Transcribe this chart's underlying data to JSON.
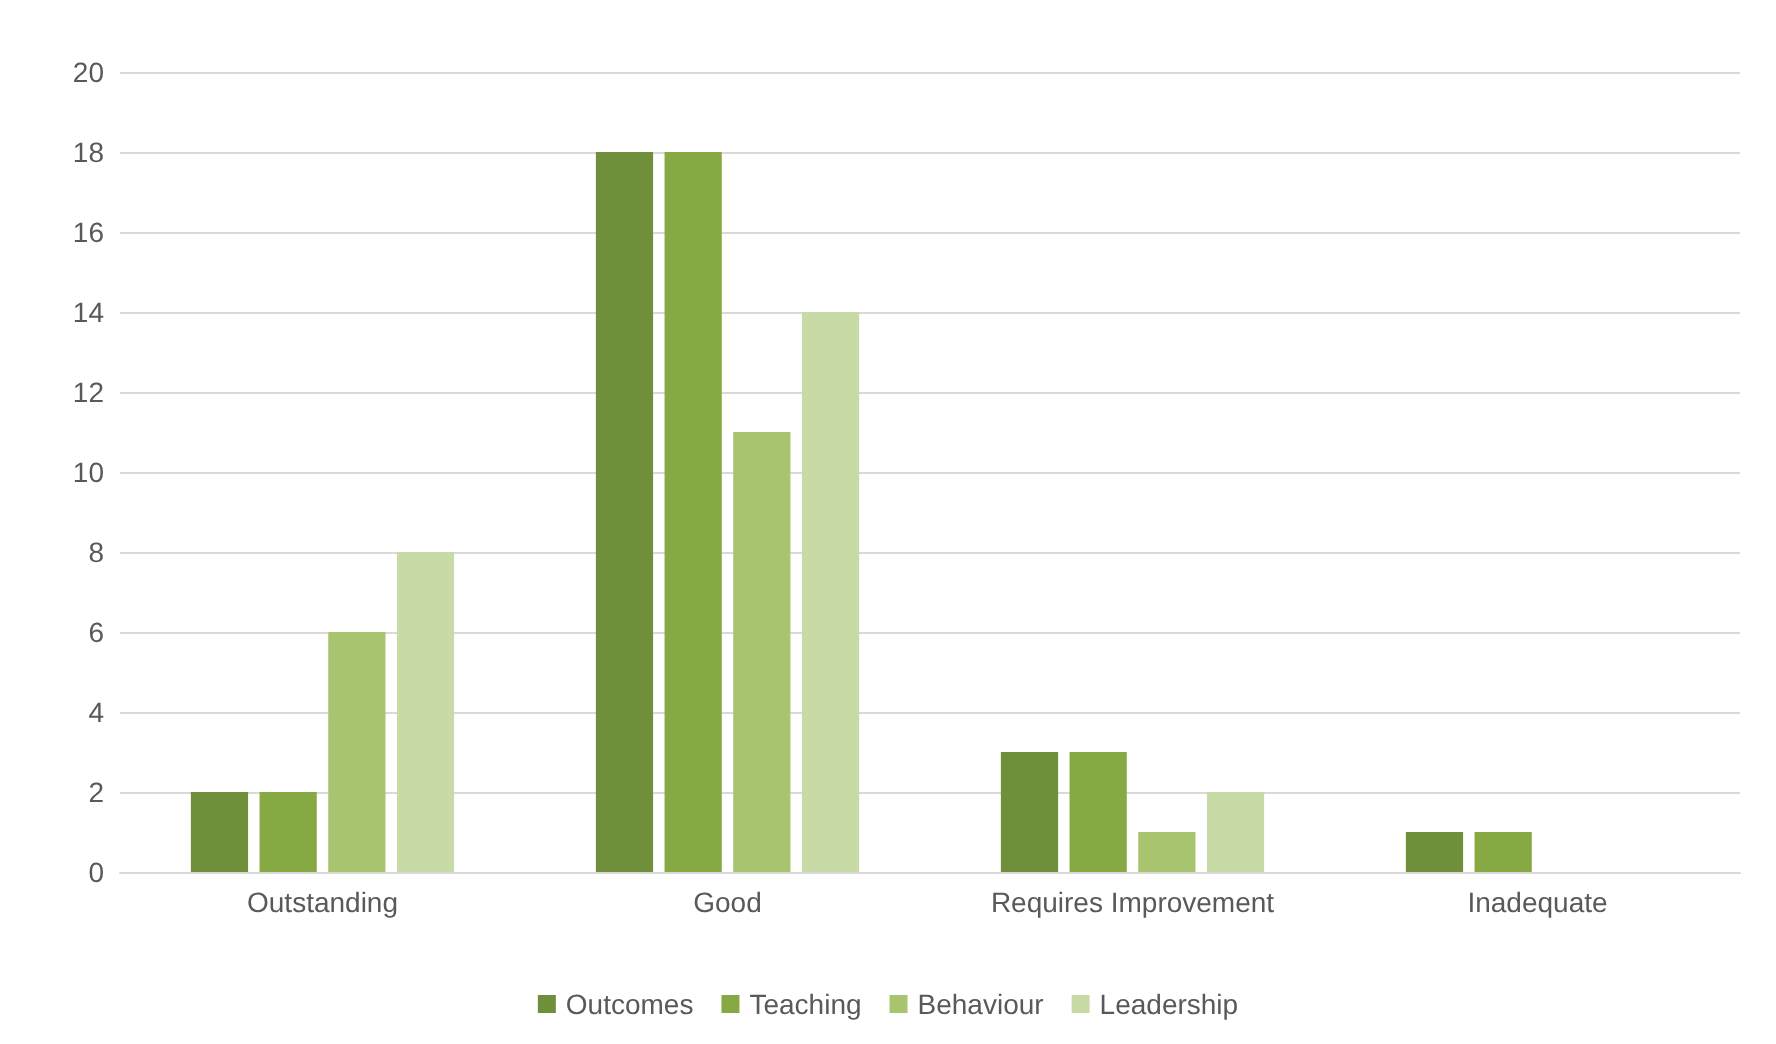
{
  "chart_data": {
    "type": "bar",
    "categories": [
      "Outstanding",
      "Good",
      "Requires Improvement",
      "Inadequate"
    ],
    "series": [
      {
        "name": "Outcomes",
        "color": "#6f8f3a",
        "values": [
          2,
          18,
          3,
          1
        ]
      },
      {
        "name": "Teaching",
        "color": "#86a943",
        "values": [
          2,
          18,
          3,
          1
        ]
      },
      {
        "name": "Behaviour",
        "color": "#a8c46e",
        "values": [
          6,
          11,
          1,
          0
        ]
      },
      {
        "name": "Leadership",
        "color": "#c8daa6",
        "values": [
          8,
          14,
          2,
          0
        ]
      }
    ],
    "ylim": [
      0,
      20
    ],
    "yticks": [
      0,
      2,
      4,
      6,
      8,
      10,
      12,
      14,
      16,
      18,
      20
    ],
    "grid": "y",
    "legend": "bottom"
  }
}
